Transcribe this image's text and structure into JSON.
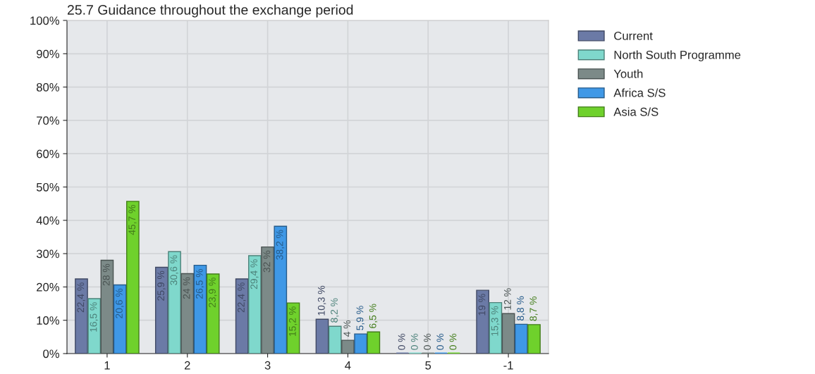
{
  "chart_data": {
    "type": "bar",
    "title": "25.7 Guidance throughout the exchange period",
    "categories": [
      "1",
      "2",
      "3",
      "4",
      "5",
      "-1"
    ],
    "series": [
      {
        "name": "Current",
        "color": "#6b7aa6",
        "values": [
          22.4,
          25.9,
          22.4,
          10.3,
          0,
          19
        ],
        "value_labels": [
          "22,4 %",
          "25,9 %",
          "22,4 %",
          "10,3 %",
          "0 %",
          "19 %"
        ]
      },
      {
        "name": "North South Programme",
        "color": "#7fd8cc",
        "values": [
          16.5,
          30.6,
          29.4,
          8.2,
          0,
          15.3
        ],
        "value_labels": [
          "16,5 %",
          "30,6 %",
          "29,4 %",
          "8,2 %",
          "0 %",
          "15,3 %"
        ]
      },
      {
        "name": "Youth",
        "color": "#7c8a88",
        "values": [
          28,
          24,
          32,
          4,
          0,
          12
        ],
        "value_labels": [
          "28 %",
          "24 %",
          "32 %",
          "4 %",
          "0 %",
          "12 %"
        ]
      },
      {
        "name": "Africa S/S",
        "color": "#3f98e6",
        "values": [
          20.6,
          26.5,
          38.2,
          5.9,
          0,
          8.8
        ],
        "value_labels": [
          "20,6 %",
          "26,5 %",
          "38,2 %",
          "5,9 %",
          "0 %",
          "8,8 %"
        ]
      },
      {
        "name": "Asia S/S",
        "color": "#6fd12c",
        "values": [
          45.7,
          23.9,
          15.2,
          6.5,
          0,
          8.7
        ],
        "value_labels": [
          "45,7 %",
          "23,9 %",
          "15,2 %",
          "6,5 %",
          "0 %",
          "8,7 %"
        ]
      }
    ],
    "ylim": [
      0,
      100
    ],
    "yticks": [
      {
        "value": 0,
        "label": "0%"
      },
      {
        "value": 10,
        "label": "10%"
      },
      {
        "value": 20,
        "label": "20%"
      },
      {
        "value": 30,
        "label": "30%"
      },
      {
        "value": 40,
        "label": "40%"
      },
      {
        "value": 50,
        "label": "50%"
      },
      {
        "value": 60,
        "label": "60%"
      },
      {
        "value": 70,
        "label": "70%"
      },
      {
        "value": 80,
        "label": "80%"
      },
      {
        "value": 90,
        "label": "90%"
      },
      {
        "value": 100,
        "label": "100%"
      }
    ],
    "grid": true,
    "legend": "top right"
  }
}
